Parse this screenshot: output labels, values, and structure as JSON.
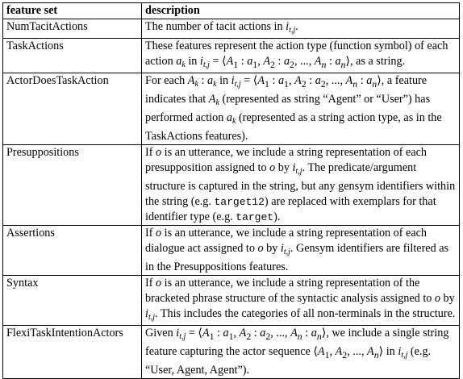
{
  "headers": {
    "feature": "feature set",
    "description": "description"
  },
  "rows": [
    {
      "feature": "NumTacitActions",
      "desc": {
        "a": "The number of tacit actions in "
      }
    },
    {
      "feature": "TaskActions",
      "desc": {
        "a": "These features represent the action type (function symbol) of each action ",
        "b": " in ",
        "c": ", as a string."
      }
    },
    {
      "feature": "ActorDoesTaskAction",
      "desc": {
        "a": "For each ",
        "b": " in ",
        "c": ", a feature indicates that ",
        "d": " (represented as string “Agent” or “User”) has performed action ",
        "e": " (represented as a string action type, as in the TaskActions features)."
      }
    },
    {
      "feature": "Presuppositions",
      "desc": {
        "a": "If ",
        "b": " is an utterance, we include a string representation of each presupposition assigned to ",
        "c": " by ",
        "d": ". The predicate/argument structure is captured in the string, but any gensym identifiers within the string (e.g. ",
        "e": "target12",
        "f": ") are replaced with exemplars for that identifier type (e.g. ",
        "g": "target",
        "h": ")."
      }
    },
    {
      "feature": "Assertions",
      "desc": {
        "a": "If ",
        "b": " is an utterance, we include a string representation of each dialogue act assigned to ",
        "c": " by ",
        "d": ". Gensym identifiers are filtered as in the Presuppositions features."
      }
    },
    {
      "feature": "Syntax",
      "desc": {
        "a": "If ",
        "b": " is an utterance, we include a string representation of the bracketed phrase structure of the syntactic analysis assigned to ",
        "c": " by ",
        "d": ". This includes the categories of all non-terminals in the structure."
      }
    },
    {
      "feature": "FlexiTaskIntentionActors",
      "desc": {
        "a": "Given ",
        "b": ", we include a single string feature capturing the actor sequence ",
        "c": " in ",
        "d": " (e.g. “User, Agent, Agent”)."
      }
    }
  ],
  "math": {
    "i": "i",
    "tj": "t,j",
    "ak": "a",
    "k": "k",
    "Ak": "A",
    "o": "o",
    "seq": "= ⟨A1 : a1, A2 : a2, ..., An : an⟩",
    "actors": "⟨A1, A2, ..., An⟩",
    "Ak_colon_ak": "A k  :  a k"
  }
}
